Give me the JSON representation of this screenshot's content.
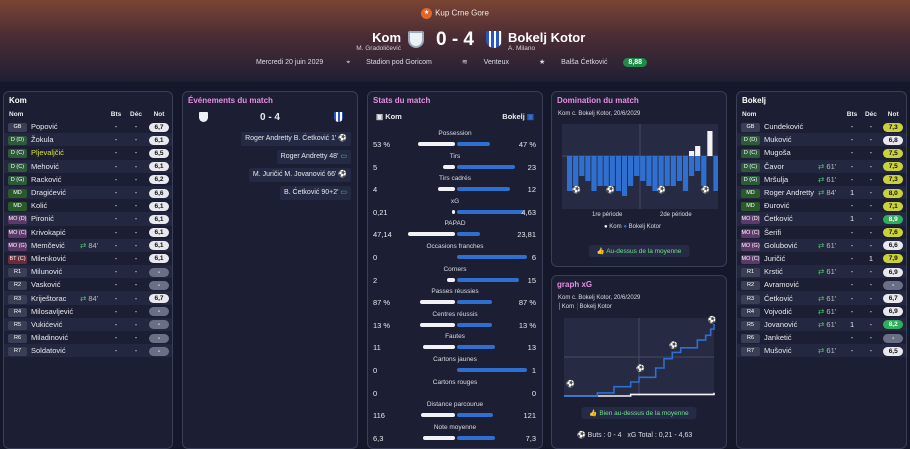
{
  "competition": "Kup Crne Gore",
  "home": {
    "name": "Kom",
    "coach": "M. Gradoličević"
  },
  "away": {
    "name": "Bokelj Kotor",
    "coach": "A. Milano"
  },
  "score": "0 - 4",
  "meta": {
    "date": "Mercredi 20 juin 2029",
    "stadium": "Stadion pod Goricom",
    "weather": "Venteux",
    "referee": "Balša Ćetković",
    "ref_rating": "8,88"
  },
  "left_panel": {
    "title": "Kom",
    "cols": [
      "Nom",
      "Bts",
      "Déc",
      "Not"
    ],
    "players": [
      {
        "pos": "GB",
        "name": "Popović",
        "bts": "-",
        "dec": "-",
        "rate": "6,7"
      },
      {
        "pos": "D (D)",
        "name": "Žokula",
        "bts": "-",
        "dec": "-",
        "rate": "6,1"
      },
      {
        "pos": "D (C)",
        "name": "Pljevaljčić",
        "bts": "-",
        "dec": "-",
        "rate": "6,5"
      },
      {
        "pos": "D (C)",
        "name": "Mehović",
        "bts": "-",
        "dec": "-",
        "rate": "6,1"
      },
      {
        "pos": "D (G)",
        "name": "Racković",
        "bts": "-",
        "dec": "-",
        "rate": "6,2"
      },
      {
        "pos": "MD",
        "name": "Dragićević",
        "bts": "-",
        "dec": "-",
        "rate": "6,6"
      },
      {
        "pos": "MD",
        "name": "Kolić",
        "bts": "-",
        "dec": "-",
        "rate": "6,1"
      },
      {
        "pos": "MO (D)",
        "name": "Pironić",
        "bts": "-",
        "dec": "-",
        "rate": "6,1"
      },
      {
        "pos": "MO (C)",
        "name": "Krivokapić",
        "bts": "-",
        "dec": "-",
        "rate": "6,1"
      },
      {
        "pos": "MO (G)",
        "name": "Memčević",
        "sub": "84'",
        "bts": "-",
        "dec": "-",
        "rate": "6,1"
      },
      {
        "pos": "BT (C)",
        "name": "Milenković",
        "bts": "-",
        "dec": "-",
        "rate": "6,1"
      },
      {
        "pos": "R1",
        "name": "Milunović",
        "bts": "-",
        "dec": "-",
        "rate": "-"
      },
      {
        "pos": "R2",
        "name": "Vasković",
        "bts": "-",
        "dec": "-",
        "rate": "-"
      },
      {
        "pos": "R3",
        "name": "Kriještorac",
        "sub": "84'",
        "bts": "-",
        "dec": "-",
        "rate": "6,7"
      },
      {
        "pos": "R4",
        "name": "Milosavljević",
        "bts": "-",
        "dec": "-",
        "rate": "-"
      },
      {
        "pos": "R5",
        "name": "Vukićević",
        "bts": "-",
        "dec": "-",
        "rate": "-"
      },
      {
        "pos": "R6",
        "name": "Miladinović",
        "bts": "-",
        "dec": "-",
        "rate": "-"
      },
      {
        "pos": "R7",
        "name": "Soldatović",
        "bts": "-",
        "dec": "-",
        "rate": "-"
      }
    ]
  },
  "events": {
    "title": "Événements du match",
    "score": "0 - 4",
    "items": [
      {
        "text": "Roger Andretty  B. Ćetković 1'",
        "icon": "ball"
      },
      {
        "text": "Roger Andretty 48'",
        "icon": "tv"
      },
      {
        "text": "M. Juričić  M. Jovanović 66'",
        "icon": "ball"
      },
      {
        "text": "B. Ćetković 90+2'",
        "icon": "tv"
      }
    ]
  },
  "stats": {
    "title": "Stats du match",
    "home": "Kom",
    "away": "Bokelj",
    "rows": [
      {
        "label": "Possession",
        "l": "53 %",
        "r": "47 %",
        "lv": 53,
        "rv": 47
      },
      {
        "label": "Tirs",
        "l": "5",
        "r": "23",
        "lv": 5,
        "rv": 23
      },
      {
        "label": "Tirs cadrés",
        "l": "4",
        "r": "12",
        "lv": 4,
        "rv": 12
      },
      {
        "label": "xG",
        "l": "0,21",
        "r": "4,63",
        "lv": 0.21,
        "rv": 4.63
      },
      {
        "label": "PAPAD",
        "l": "47,14",
        "r": "23,81",
        "lv": 47.14,
        "rv": 23.81
      },
      {
        "label": "Occasions franches",
        "l": "0",
        "r": "6",
        "lv": 0,
        "rv": 6
      },
      {
        "label": "Corners",
        "l": "2",
        "r": "15",
        "lv": 2,
        "rv": 15
      },
      {
        "label": "Passes réussies",
        "l": "87 %",
        "r": "87 %",
        "lv": 87,
        "rv": 87
      },
      {
        "label": "Centres réussis",
        "l": "13 %",
        "r": "13 %",
        "lv": 13,
        "rv": 13
      },
      {
        "label": "Fautes",
        "l": "11",
        "r": "13",
        "lv": 11,
        "rv": 13
      },
      {
        "label": "Cartons jaunes",
        "l": "0",
        "r": "1",
        "lv": 0,
        "rv": 1
      },
      {
        "label": "Cartons rouges",
        "l": "0",
        "r": "0",
        "lv": 0,
        "rv": 0
      },
      {
        "label": "Distance parcourue",
        "l": "116",
        "r": "121",
        "lv": 116,
        "rv": 121
      },
      {
        "label": "Note moyenne",
        "l": "6,3",
        "r": "7,3",
        "lv": 6.3,
        "rv": 7.3
      }
    ]
  },
  "domination": {
    "title": "Domination du match",
    "sub": "Kom c. Bokelj Kotor, 20/6/2029",
    "p1": "1re période",
    "p2": "2de période",
    "leg_home": "Kom",
    "leg_away": "Bokelj Kotor",
    "note": "Au-dessus de la moyenne"
  },
  "xg": {
    "title": "graph xG",
    "sub": "Kom c. Bokelj Kotor, 20/6/2029",
    "leg_home": "Kom",
    "leg_away": "Bokelj Kotor",
    "note": "Bien au-dessus de la moyenne",
    "buts": "Buts : 0 - 4",
    "total": "xG Total : 0,21 - 4,63"
  },
  "chart_data": [
    {
      "type": "bar",
      "title": "Domination du match",
      "series": [
        {
          "name": "Kom",
          "values": [
            0,
            0,
            0,
            0,
            0,
            0,
            0,
            0,
            0,
            0,
            0,
            0,
            0,
            0,
            0,
            0,
            0,
            0,
            0,
            0,
            1,
            2,
            0,
            5,
            0
          ]
        },
        {
          "name": "Bokelj Kotor",
          "values": [
            -7,
            -6,
            -4,
            -5,
            -7,
            -6,
            -6,
            -6,
            -7,
            -8,
            -6,
            -4,
            -5,
            -6,
            -7,
            -7,
            -6,
            -6,
            -5,
            -7,
            -4,
            -3,
            -6,
            0,
            -7
          ]
        }
      ]
    },
    {
      "type": "line",
      "title": "graph xG",
      "series": [
        {
          "name": "Kom",
          "x": [
            0,
            40,
            90
          ],
          "y": [
            0,
            0.1,
            0.21
          ]
        },
        {
          "name": "Bokelj Kotor",
          "x": [
            0,
            20,
            30,
            40,
            45,
            55,
            60,
            65,
            70,
            80,
            85,
            88,
            90
          ],
          "y": [
            0,
            0.2,
            0.6,
            0.9,
            1.2,
            1.8,
            2.4,
            2.8,
            3.1,
            3.6,
            3.9,
            4.3,
            4.63
          ]
        }
      ]
    }
  ],
  "right_panel": {
    "title": "Bokelj",
    "cols": [
      "Nom",
      "Bts",
      "Déc",
      "Not"
    ],
    "players": [
      {
        "pos": "GB",
        "name": "Cundeković",
        "bts": "-",
        "dec": "-",
        "rate": "7,3",
        "c": "y"
      },
      {
        "pos": "D (D)",
        "name": "Muković",
        "bts": "-",
        "dec": "-",
        "rate": "6,8"
      },
      {
        "pos": "D (C)",
        "name": "Mugoša",
        "bts": "-",
        "dec": "-",
        "rate": "7,5",
        "c": "y"
      },
      {
        "pos": "D (C)",
        "name": "Čavor",
        "sub": "61'",
        "bts": "-",
        "dec": "-",
        "rate": "7,5",
        "c": "y"
      },
      {
        "pos": "D (G)",
        "name": "Mršulja",
        "sub": "61'",
        "bts": "-",
        "dec": "-",
        "rate": "7,3",
        "c": "y"
      },
      {
        "pos": "MD",
        "name": "Roger Andretty",
        "sub": "84'",
        "bts": "1",
        "dec": "-",
        "rate": "8,0",
        "c": "y"
      },
      {
        "pos": "MD",
        "name": "Đurović",
        "bts": "-",
        "dec": "-",
        "rate": "7,1",
        "c": "y"
      },
      {
        "pos": "MO (D)",
        "name": "Ćetković",
        "bts": "1",
        "dec": "-",
        "rate": "8,9",
        "c": "g"
      },
      {
        "pos": "MO (C)",
        "name": "Šerifi",
        "bts": "-",
        "dec": "-",
        "rate": "7,6",
        "c": "y"
      },
      {
        "pos": "MO (G)",
        "name": "Golubović",
        "sub": "61'",
        "bts": "-",
        "dec": "-",
        "rate": "6,6"
      },
      {
        "pos": "MO (C)",
        "name": "Juričić",
        "bts": "-",
        "dec": "1",
        "rate": "7,9",
        "c": "y"
      },
      {
        "pos": "R1",
        "name": "Krstić",
        "sub": "61'",
        "bts": "-",
        "dec": "-",
        "rate": "6,9"
      },
      {
        "pos": "R2",
        "name": "Avramović",
        "bts": "-",
        "dec": "-",
        "rate": "-"
      },
      {
        "pos": "R3",
        "name": "Ćetković",
        "sub": "61'",
        "bts": "-",
        "dec": "-",
        "rate": "6,7"
      },
      {
        "pos": "R4",
        "name": "Vojvodić",
        "sub": "61'",
        "bts": "-",
        "dec": "-",
        "rate": "6,9"
      },
      {
        "pos": "R5",
        "name": "Jovanović",
        "sub": "61'",
        "bts": "1",
        "dec": "-",
        "rate": "8,2",
        "c": "g"
      },
      {
        "pos": "R6",
        "name": "Janketić",
        "bts": "-",
        "dec": "-",
        "rate": "-"
      },
      {
        "pos": "R7",
        "name": "Mušović",
        "sub": "61'",
        "bts": "-",
        "dec": "-",
        "rate": "6,5"
      }
    ]
  }
}
